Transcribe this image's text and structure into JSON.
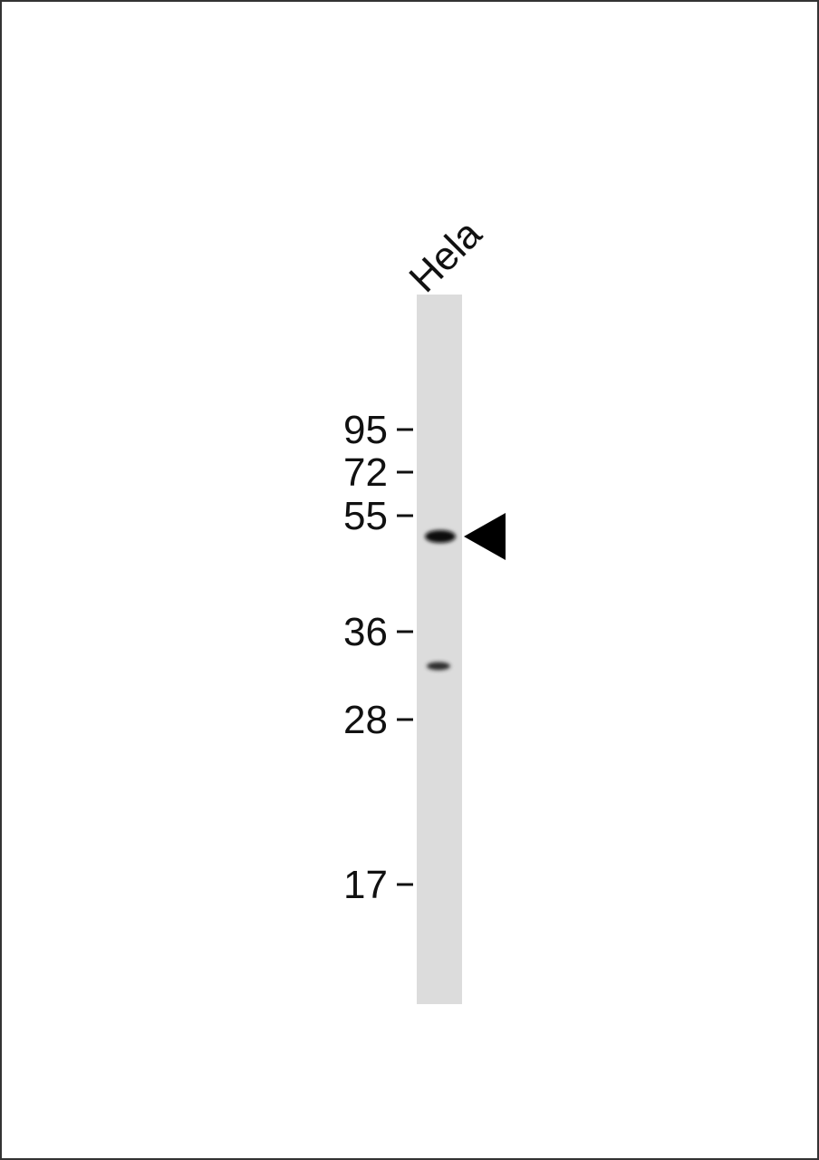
{
  "lanes": [
    {
      "label": "Hela"
    }
  ],
  "markers": [
    95,
    72,
    55,
    36,
    28,
    17
  ]
}
